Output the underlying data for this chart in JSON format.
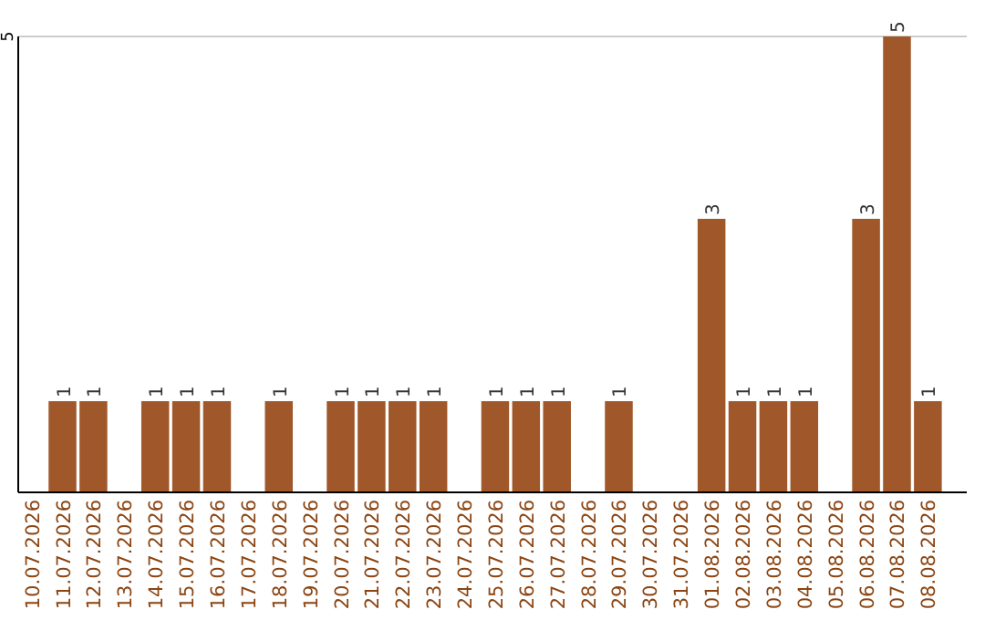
{
  "chart_data": {
    "type": "bar",
    "categories": [
      "10.07.2026",
      "11.07.2026",
      "12.07.2026",
      "13.07.2026",
      "14.07.2026",
      "15.07.2026",
      "16.07.2026",
      "17.07.2026",
      "18.07.2026",
      "19.07.2026",
      "20.07.2026",
      "21.07.2026",
      "22.07.2026",
      "23.07.2026",
      "24.07.2026",
      "25.07.2026",
      "26.07.2026",
      "27.07.2026",
      "28.07.2026",
      "29.07.2026",
      "30.07.2026",
      "31.07.2026",
      "01.08.2026",
      "02.08.2026",
      "03.08.2026",
      "04.08.2026",
      "05.08.2026",
      "06.08.2026",
      "07.08.2026",
      "08.08.2026"
    ],
    "values": [
      0,
      1,
      1,
      0,
      1,
      1,
      1,
      0,
      1,
      0,
      1,
      1,
      1,
      1,
      0,
      1,
      1,
      1,
      0,
      1,
      0,
      0,
      3,
      1,
      1,
      1,
      0,
      3,
      5,
      1
    ],
    "value_labels": [
      null,
      "1",
      "1",
      null,
      "1",
      "1",
      "1",
      null,
      "1",
      null,
      "1",
      "1",
      "1",
      "1",
      null,
      "1",
      "1",
      "1",
      null,
      "1",
      null,
      null,
      "3",
      "1",
      "1",
      "1",
      null,
      "3",
      "5",
      "1"
    ],
    "color": "#a0582b",
    "ylim": [
      0,
      5
    ],
    "yticks": [
      5
    ],
    "ref_lines": [
      {
        "axis": "y",
        "value": 5,
        "color": "#cccccc"
      }
    ]
  }
}
